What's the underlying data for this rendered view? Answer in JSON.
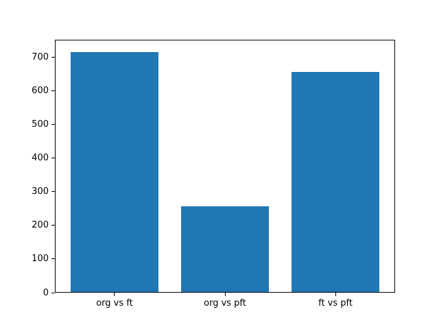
{
  "chart_data": {
    "type": "bar",
    "categories": [
      "org vs ft",
      "org vs pft",
      "ft vs pft"
    ],
    "values": [
      717,
      257,
      657
    ],
    "title": "",
    "xlabel": "",
    "ylabel": "",
    "ylim": [
      0,
      753
    ],
    "yticks": [
      0,
      100,
      200,
      300,
      400,
      500,
      600,
      700
    ],
    "bar_color": "#1f77b4",
    "axes_color": "#000000",
    "background_color": "#ffffff",
    "grid": false,
    "legend": "none"
  }
}
